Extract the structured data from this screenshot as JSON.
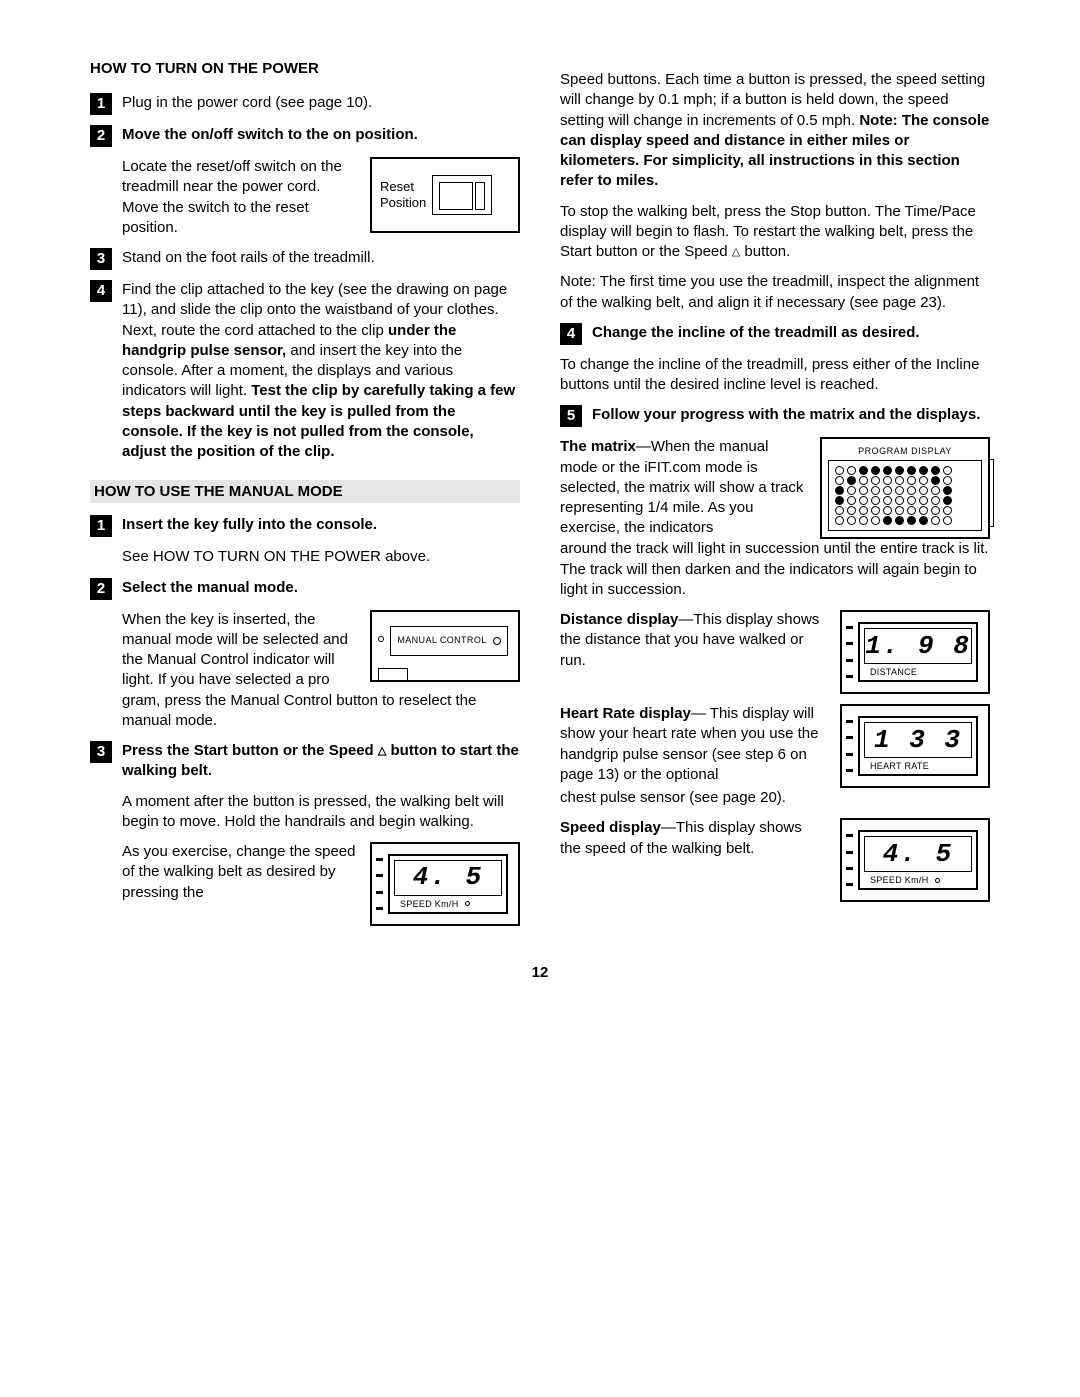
{
  "left": {
    "hdr1": "HOW TO TURN ON THE POWER",
    "s1": "Plug in the power cord (see page 10).",
    "s2_title": "Move the on/off switch to the on position.",
    "s2_body": "Locate the reset/off switch on the treadmill near the power cord. Move the switch to the reset position.",
    "s2_fig_label1": "Reset",
    "s2_fig_label2": "Position",
    "s3": "Stand on the foot rails of the treadmill.",
    "s4_a": "Find the clip attached to the key (see the drawing on page 11), and slide the clip onto the waistband of your clothes. Next, route the cord attached to the clip ",
    "s4_b": "under the handgrip pulse sensor,",
    "s4_c": " and insert the key into the console. After a moment, the displays and various indicators will light. ",
    "s4_d": "Test the clip by carefully taking a few steps backward until the key is pulled from the console. If the key is not pulled from the console, adjust the position of the clip.",
    "hdr2": "HOW TO USE THE MANUAL MODE",
    "m1_title": "Insert the key fully into the console.",
    "m1_body": "See HOW TO TURN ON THE POWER above.",
    "m2_title": "Select the manual mode.",
    "m2_body_a": "When the key is inserted, the manual mode will be selected and the Manual Control indicator will light. If you have selected a pro",
    "m2_body_b": "gram, press the Manual Control button to reselect the manual mode.",
    "m2_fig_label": "MANUAL CONTROL",
    "m3_title_a": "Press the Start button or the Speed ",
    "m3_title_b": " button to start the walking belt.",
    "m3_p1": "A moment after the button is pressed, the walking belt will begin to move. Hold the handrails and begin walking.",
    "m3_p2": "As you exercise, change the speed of the walking belt as desired by pressing the",
    "m3_fig_val": "4. 5",
    "m3_fig_label": "SPEED    Km/H"
  },
  "right": {
    "p1_a": "Speed buttons. Each time a button is pressed, the speed setting will change by 0.1 mph; if a button is held down, the speed setting will change in increments of 0.5 mph. ",
    "p1_b": "Note: The console can display speed and distance in either miles or kilometers. For simplicity, all instructions in this section refer to miles.",
    "p2_a": "To stop the walking belt, press the Stop button. The Time/Pace display will begin to flash. To restart the walking belt, press the Start button or the Speed ",
    "p2_b": " button.",
    "p3": "Note: The first time you use the treadmill, inspect the alignment of the walking belt, and align it if necessary (see page 23).",
    "s4_title": "Change the incline of the treadmill as desired.",
    "s4_body": "To change the incline of the treadmill, press either of the Incline buttons until the desired incline level is reached.",
    "s5_title": "Follow your progress with the matrix and the displays.",
    "matrix_a": "The matrix",
    "matrix_b": "—When the manual mode or the iFIT.com mode is selected, the matrix will show a track representing 1/4 mile. As you exercise, the indicators",
    "matrix_c": "around the track will light in succession until the entire track is lit. The track will then darken and the indicators will again begin to light in succession.",
    "matrix_fig_title": "PROGRAM DISPLAY",
    "dist_a": "Distance display",
    "dist_b": "—This display shows the distance that you have walked or run.",
    "dist_fig_val": "1. 9 8",
    "dist_fig_label": "DISTANCE",
    "hr_a": "Heart Rate display",
    "hr_b": "— This display will show your heart rate when you use the handgrip pulse sensor (see step 6 on page 13) or the optional",
    "hr_c": "chest pulse sensor (see page 20).",
    "hr_fig_val": "1 3 3",
    "hr_fig_label": "HEART RATE",
    "sp_a": "Speed display",
    "sp_b": "—This display shows the speed of the walking belt.",
    "sp_fig_val": "4. 5",
    "sp_fig_label": "SPEED    Km/H"
  },
  "matrix_pattern": [
    [
      0,
      0,
      1,
      1,
      1,
      1,
      1,
      1,
      1,
      0
    ],
    [
      0,
      1,
      0,
      0,
      0,
      0,
      0,
      0,
      1,
      0
    ],
    [
      1,
      0,
      0,
      0,
      0,
      0,
      0,
      0,
      0,
      1
    ],
    [
      1,
      0,
      0,
      0,
      0,
      0,
      0,
      0,
      0,
      1
    ],
    [
      0,
      0,
      0,
      0,
      0,
      0,
      0,
      0,
      0,
      0
    ],
    [
      0,
      0,
      0,
      0,
      1,
      1,
      1,
      1,
      0,
      0
    ]
  ],
  "page": "12"
}
